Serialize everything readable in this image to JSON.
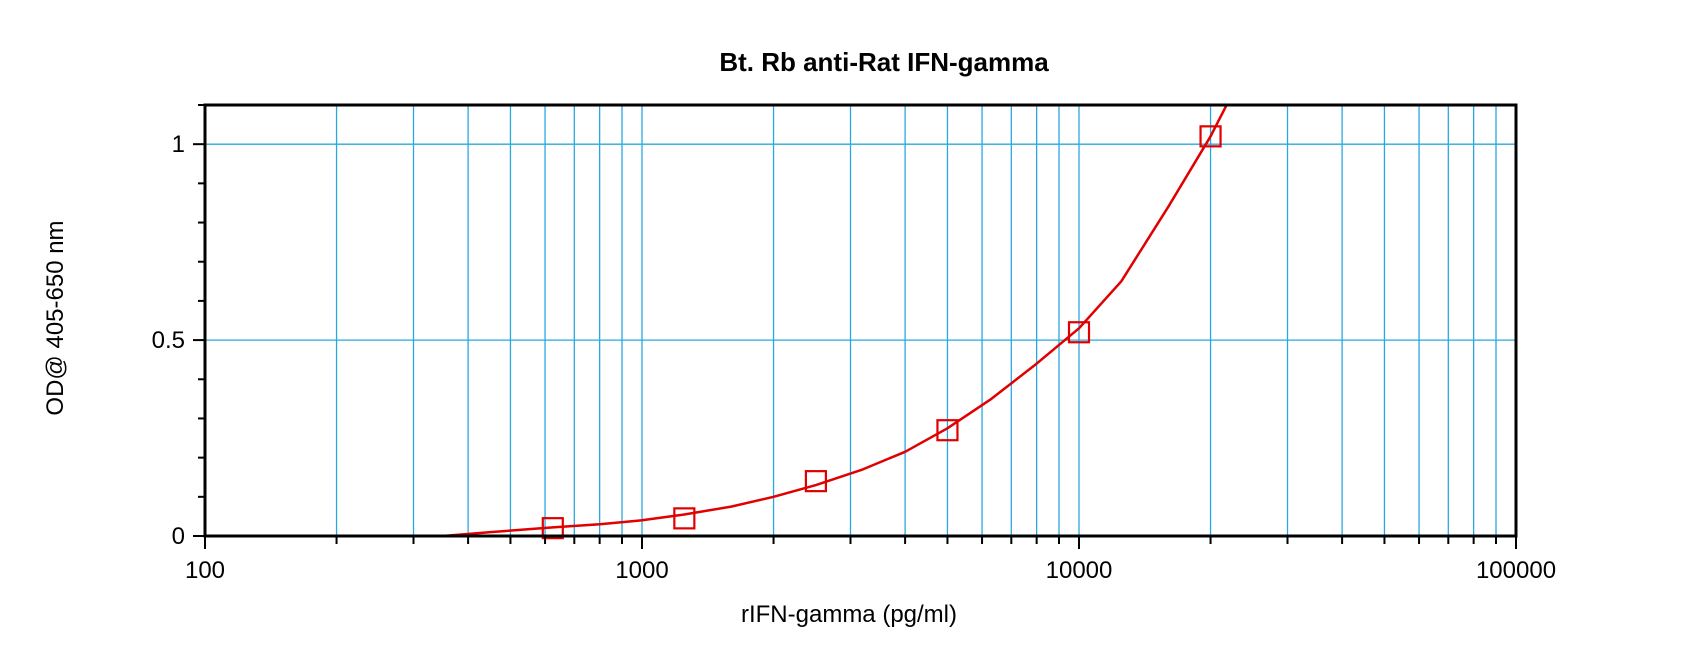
{
  "chart_data": {
    "type": "scatter",
    "title": "Bt. Rb anti-Rat IFN-gamma",
    "xlabel": "rIFN-gamma (pg/ml)",
    "ylabel": "OD@ 405-650 nm",
    "x_scale": "log",
    "xlim": [
      100,
      100000
    ],
    "ylim": [
      0,
      1.1
    ],
    "x_ticks": [
      100,
      1000,
      10000,
      100000
    ],
    "x_tick_labels": [
      "100",
      "1000",
      "10000",
      "100000"
    ],
    "y_ticks": [
      0,
      0.5,
      1
    ],
    "y_tick_labels": [
      "0",
      "0.5",
      "1"
    ],
    "grid": true,
    "series": [
      {
        "type": "scatter",
        "marker": "open-square",
        "color": "#e00000",
        "x": [
          625,
          1250,
          2500,
          5000,
          10000,
          20000
        ],
        "y": [
          0.02,
          0.045,
          0.14,
          0.27,
          0.52,
          1.02
        ]
      },
      {
        "type": "line",
        "color": "#e00000",
        "x": [
          350,
          450,
          625,
          800,
          1000,
          1250,
          1600,
          2000,
          2500,
          3200,
          4000,
          5000,
          6300,
          8000,
          10000,
          12500,
          16000,
          20000,
          22000
        ],
        "y": [
          0.0,
          0.01,
          0.022,
          0.03,
          0.04,
          0.055,
          0.075,
          0.1,
          0.13,
          0.17,
          0.215,
          0.275,
          0.35,
          0.44,
          0.53,
          0.65,
          0.84,
          1.02,
          1.11
        ]
      }
    ],
    "colors": {
      "grid": "#29a8e0",
      "axis": "#000000",
      "series": "#e00000"
    }
  }
}
